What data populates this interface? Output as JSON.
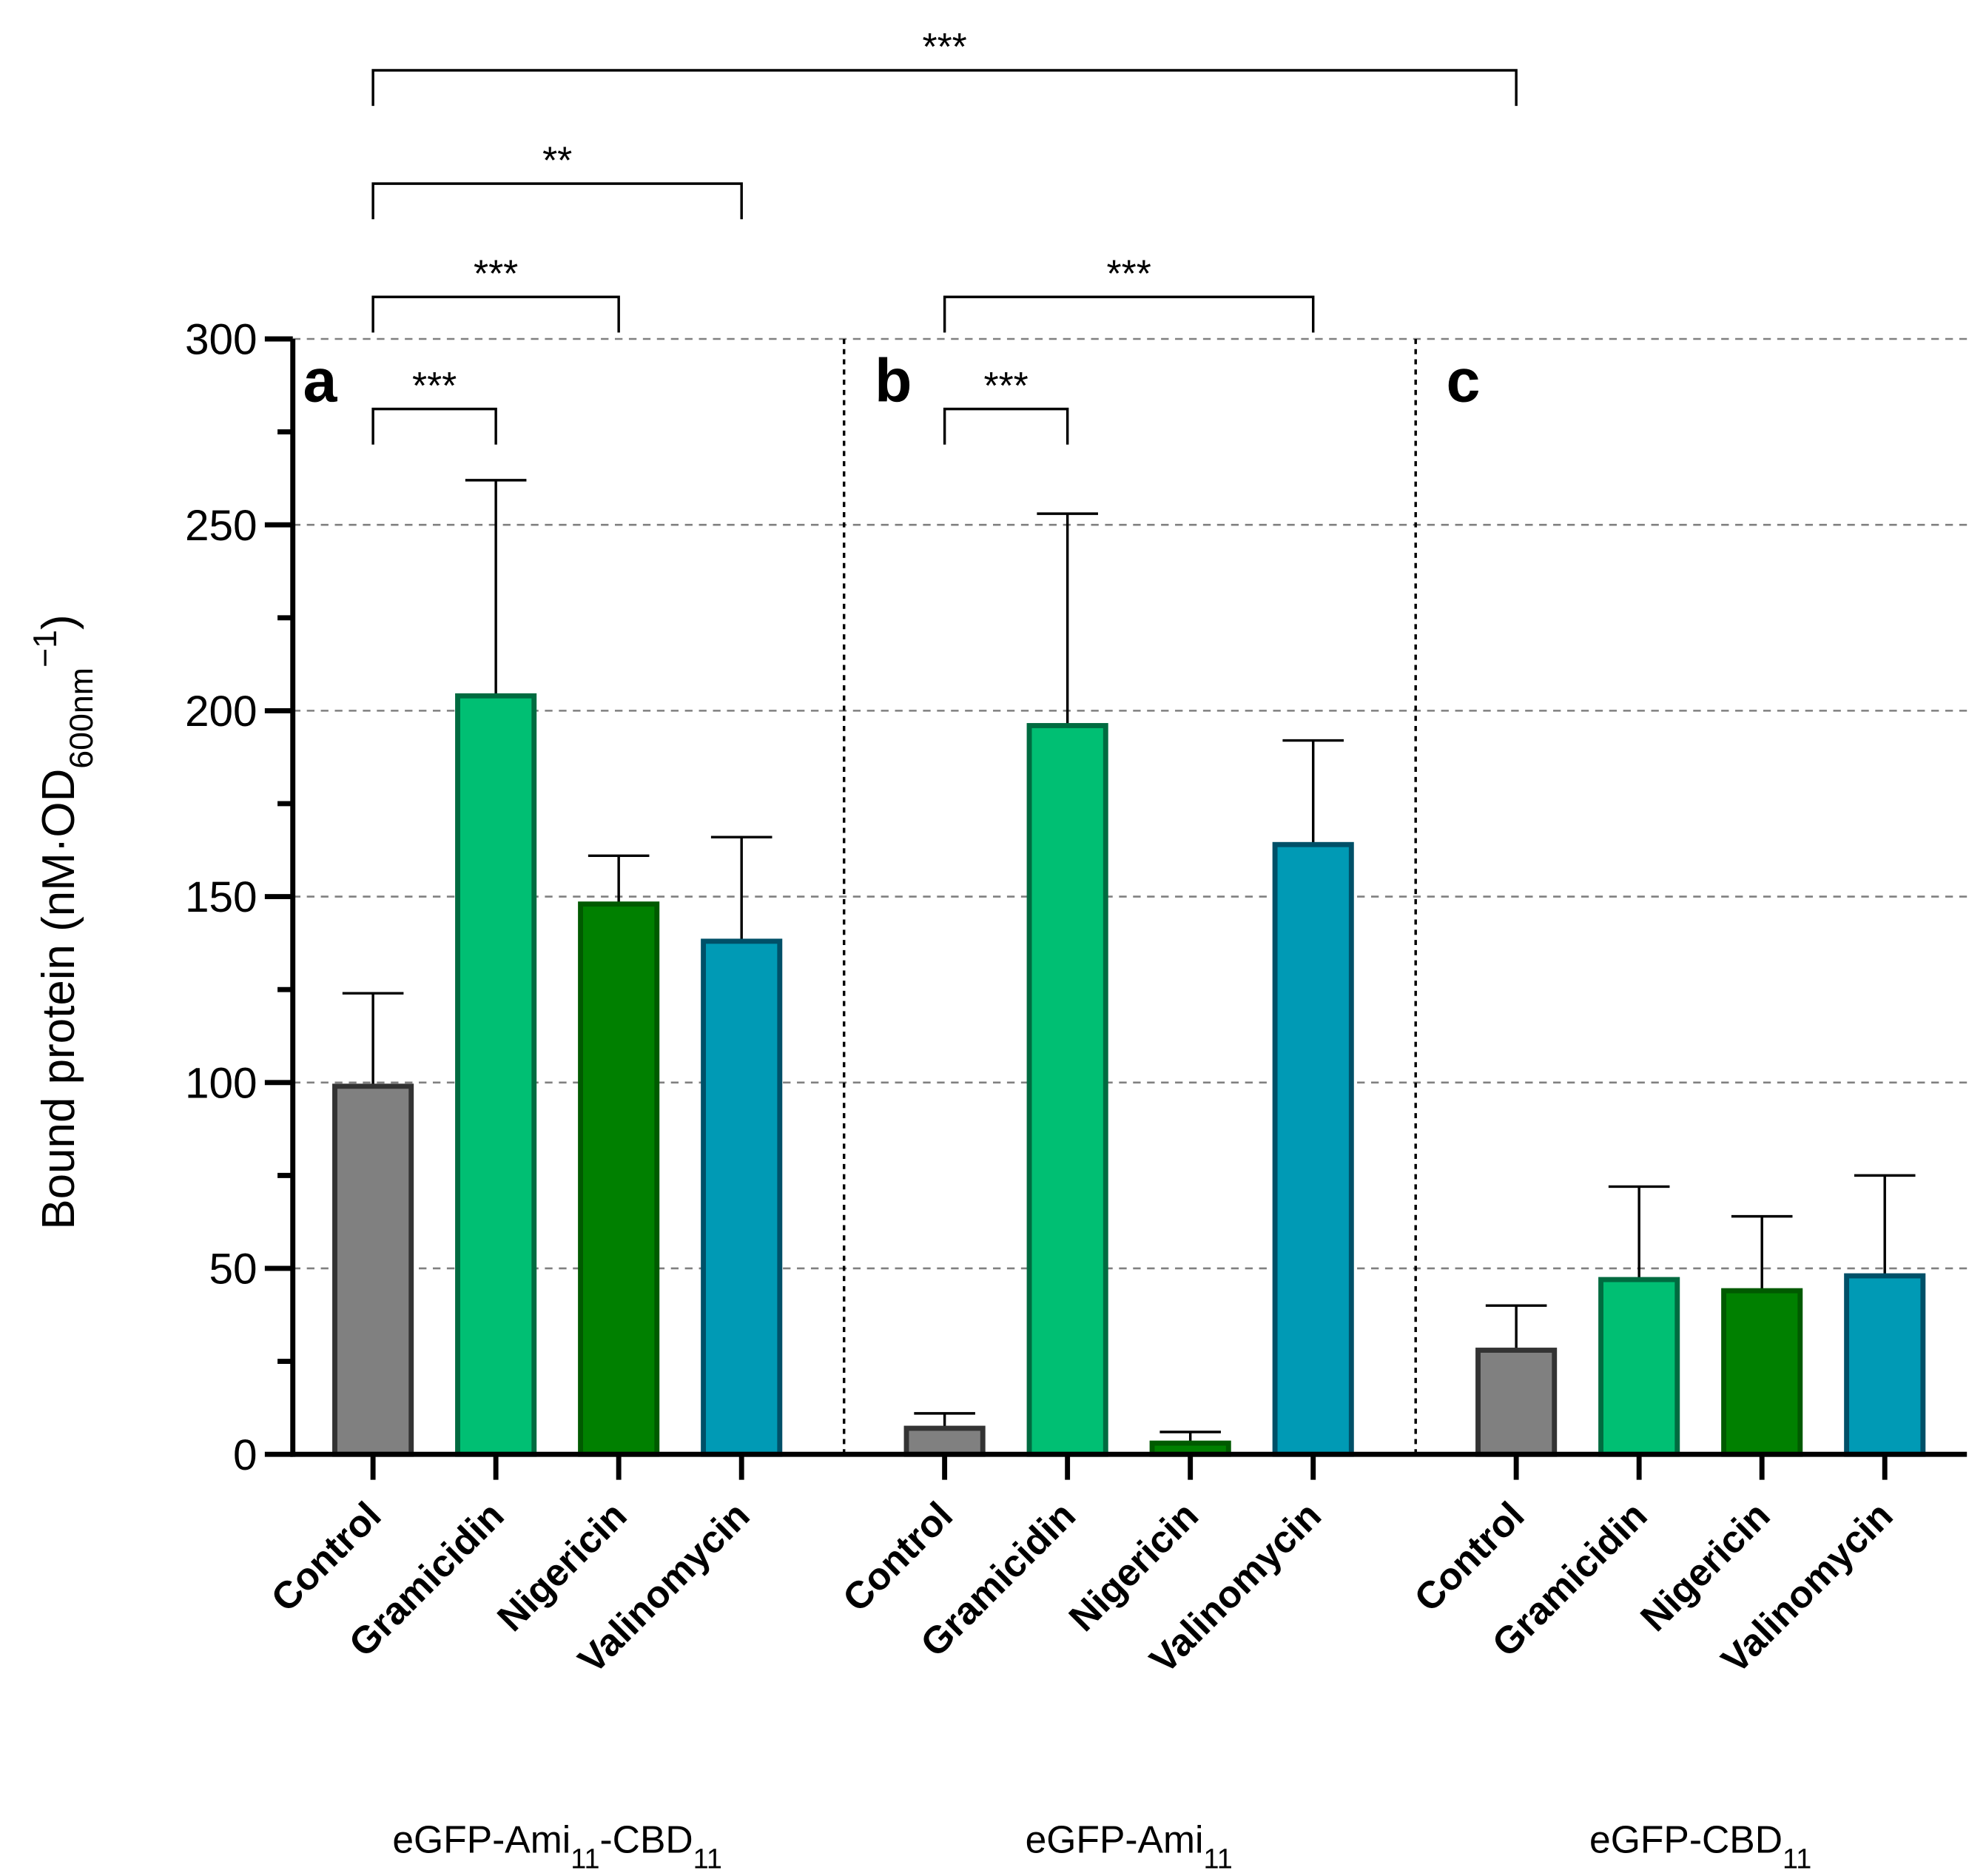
{
  "chart_data": {
    "type": "bar",
    "ylabel": "Bound protein (nM·OD600nm−1)",
    "ylabel_parts": {
      "main": "Bound protein (nM·OD",
      "sub": "600nm",
      "sup": "−1",
      "close": ")"
    },
    "ylim": [
      0,
      300
    ],
    "yticks": [
      0,
      50,
      100,
      150,
      200,
      250,
      300
    ],
    "grid": true,
    "colors": {
      "Control": "#808080",
      "Gramicidin": "#00BF73",
      "Nigericin": "#008000",
      "Valinomycin": "#009AB5"
    },
    "edge_colors": {
      "Control": "#333333",
      "Gramicidin": "#006B40",
      "Nigericin": "#005A00",
      "Valinomycin": "#005068"
    },
    "panels": [
      {
        "letter": "a",
        "group": "eGFP-Ami",
        "group_sub1": "11",
        "group_mid": "-CBD",
        "group_sub2": "11",
        "categories": [
          "Control",
          "Gramicidin",
          "Nigericin",
          "Valinomycin"
        ],
        "values": [
          99,
          204,
          148,
          138
        ],
        "errors": [
          25,
          58,
          13,
          28
        ]
      },
      {
        "letter": "b",
        "group": "eGFP-Ami",
        "group_sub1": "11",
        "group_mid": "",
        "group_sub2": "",
        "categories": [
          "Control",
          "Gramicidin",
          "Nigericin",
          "Valinomycin"
        ],
        "values": [
          7,
          196,
          3,
          164
        ],
        "errors": [
          4,
          57,
          3,
          28
        ]
      },
      {
        "letter": "c",
        "group": "eGFP-CBD",
        "group_sub1": "11",
        "group_mid": "",
        "group_sub2": "",
        "categories": [
          "Control",
          "Gramicidin",
          "Nigericin",
          "Valinomycin"
        ],
        "values": [
          28,
          47,
          44,
          48
        ],
        "errors": [
          12,
          25,
          20,
          27
        ]
      }
    ],
    "significance": [
      {
        "from": [
          0,
          0
        ],
        "to": [
          0,
          1
        ],
        "label": "***",
        "level": 0
      },
      {
        "from": [
          0,
          0
        ],
        "to": [
          0,
          2
        ],
        "label": "***",
        "level": 1
      },
      {
        "from": [
          0,
          0
        ],
        "to": [
          0,
          3
        ],
        "label": "**",
        "level": 2
      },
      {
        "from": [
          0,
          0
        ],
        "to": [
          2,
          0
        ],
        "label": "***",
        "level": 3
      },
      {
        "from": [
          1,
          0
        ],
        "to": [
          1,
          1
        ],
        "label": "***",
        "level": 0
      },
      {
        "from": [
          1,
          0
        ],
        "to": [
          1,
          3
        ],
        "label": "***",
        "level": 1
      }
    ]
  }
}
